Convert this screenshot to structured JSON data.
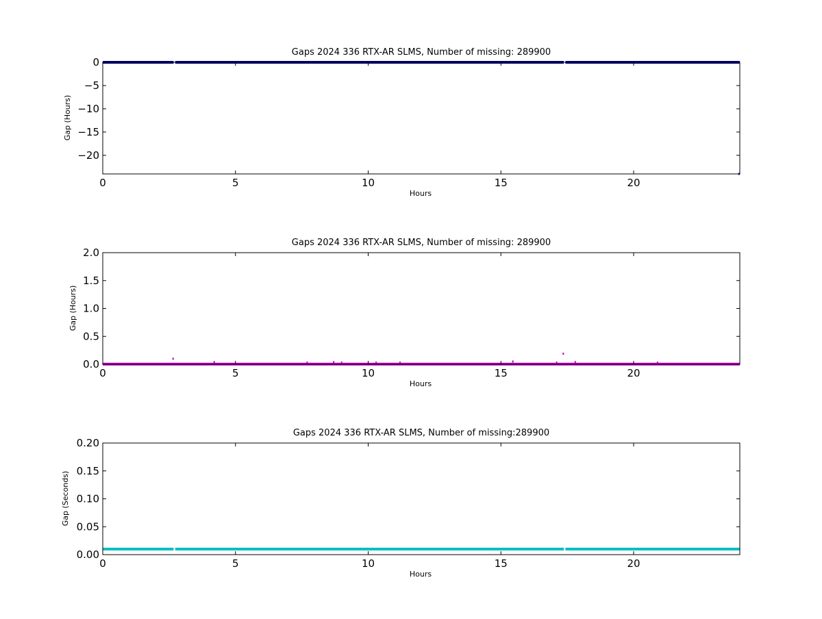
{
  "chart_data": [
    {
      "type": "scatter",
      "title": "Gaps 2024 336 RTX-AR  SLMS, Number of missing: 289900",
      "xlabel": "Hours",
      "ylabel": "Gap (Hours)",
      "xlim": [
        0,
        24
      ],
      "ylim": [
        -24,
        0
      ],
      "xticks": [
        0,
        5,
        10,
        15,
        20
      ],
      "yticks": [
        0,
        -5,
        -10,
        -15,
        -20
      ],
      "ytick_labels": [
        "0",
        "−5",
        "−10",
        "−15",
        "−20"
      ],
      "grid": false,
      "color": "#000080",
      "baseline_value": 0,
      "breaks": [
        2.7,
        17.4
      ],
      "points": [
        [
          23.97,
          -24
        ]
      ]
    },
    {
      "type": "scatter",
      "title": "Gaps 2024 336 RTX-AR  SLMS, Number of missing: 289900",
      "xlabel": "Hours",
      "ylabel": "Gap (Hours)",
      "xlim": [
        0,
        24
      ],
      "ylim": [
        0,
        2
      ],
      "xticks": [
        0,
        5,
        10,
        15,
        20
      ],
      "yticks": [
        0,
        0.5,
        1,
        1.5,
        2
      ],
      "ytick_labels": [
        "0.0",
        "0.5",
        "1.0",
        "1.5",
        "2.0"
      ],
      "grid": false,
      "color": "#bf00bf",
      "baseline_value": 0.003,
      "breaks": [],
      "points": [
        [
          2.65,
          0.1
        ],
        [
          4.2,
          0.04
        ],
        [
          7.7,
          0.03
        ],
        [
          8.7,
          0.04
        ],
        [
          9.0,
          0.03
        ],
        [
          10.3,
          0.03
        ],
        [
          11.2,
          0.03
        ],
        [
          15.45,
          0.05
        ],
        [
          17.1,
          0.03
        ],
        [
          17.35,
          0.19
        ],
        [
          17.8,
          0.04
        ],
        [
          20.9,
          0.03
        ]
      ]
    },
    {
      "type": "scatter",
      "title": "Gaps 2024 336 RTX-AR  SLMS, Number of missing:289900",
      "xlabel": "Hours",
      "ylabel": "Gap (Seconds)",
      "xlim": [
        0,
        24
      ],
      "ylim": [
        0,
        0.2
      ],
      "xticks": [
        0,
        5,
        10,
        15,
        20
      ],
      "yticks": [
        0,
        0.05,
        0.1,
        0.15,
        0.2
      ],
      "ytick_labels": [
        "0.00",
        "0.05",
        "0.10",
        "0.15",
        "0.20"
      ],
      "grid": false,
      "color": "#00bfbf",
      "baseline_value": 0.01,
      "breaks": [
        2.7,
        17.4
      ],
      "points": []
    }
  ]
}
